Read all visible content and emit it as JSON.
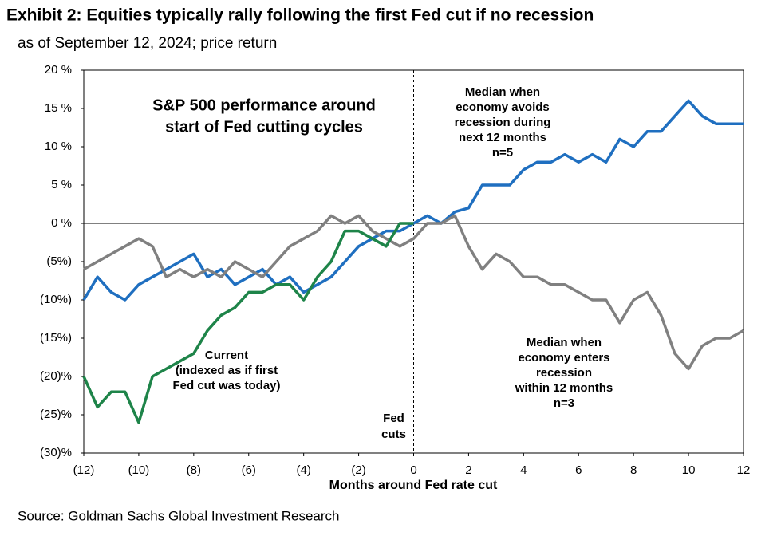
{
  "chart_data": {
    "type": "line",
    "title": "Exhibit 2: Equities typically rally following the first Fed cut if no recession",
    "subtitle": "as of September 12, 2024; price return",
    "x_label": "Months around Fed rate cut",
    "source": "Source: Goldman Sachs Global Investment Research",
    "inset_title": [
      "S&P 500 performance around",
      "start of Fed cutting cycles"
    ],
    "vline": 0,
    "vline_label": [
      "Fed",
      "cuts"
    ],
    "xlim": [
      -12,
      12
    ],
    "ylim": [
      -30,
      20
    ],
    "xticks": [
      {
        "value": -12,
        "label": "(12)"
      },
      {
        "value": -10,
        "label": "(10)"
      },
      {
        "value": -8,
        "label": "(8)"
      },
      {
        "value": -6,
        "label": "(6)"
      },
      {
        "value": -4,
        "label": "(4)"
      },
      {
        "value": -2,
        "label": "(2)"
      },
      0,
      2,
      4,
      6,
      8,
      10,
      12
    ],
    "yticks": [
      {
        "value": -30,
        "label": "(30)%"
      },
      {
        "value": -25,
        "label": "(25)%"
      },
      {
        "value": -20,
        "label": "(20)%"
      },
      {
        "value": -15,
        "label": "(15%)"
      },
      {
        "value": -10,
        "label": "(10%)"
      },
      {
        "value": -5,
        "label": "(5%)"
      },
      {
        "value": 0,
        "label": "0 %"
      },
      {
        "value": 5,
        "label": "5 %"
      },
      {
        "value": 10,
        "label": "10 %"
      },
      {
        "value": 15,
        "label": "15 %"
      },
      {
        "value": 20,
        "label": "20 %"
      }
    ],
    "x": [
      -12,
      -11.5,
      -11,
      -10.5,
      -10,
      -9.5,
      -9,
      -8.5,
      -8,
      -7.5,
      -7,
      -6.5,
      -6,
      -5.5,
      -5,
      -4.5,
      -4,
      -3.5,
      -3,
      -2.5,
      -2,
      -1.5,
      -1,
      -0.5,
      0,
      0.5,
      1,
      1.5,
      2,
      2.5,
      3,
      3.5,
      4,
      4.5,
      5,
      5.5,
      6,
      6.5,
      7,
      7.5,
      8,
      8.5,
      9,
      9.5,
      10,
      10.5,
      11,
      11.5,
      12
    ],
    "series": [
      {
        "name": [
          "Median when",
          "economy avoids",
          "recession during",
          "next 12 months",
          "n=5"
        ],
        "color": "#1f6fc0",
        "values": [
          -10,
          -7,
          -9,
          -10,
          -8,
          -7,
          -6,
          -5,
          -4,
          -7,
          -6,
          -8,
          -7,
          -6,
          -8,
          -7,
          -9,
          -8,
          -7,
          -5,
          -3,
          -2,
          -1,
          -1,
          0,
          1,
          0,
          1.5,
          2,
          5,
          5,
          5,
          7,
          8,
          8,
          9,
          8,
          9,
          8,
          11,
          10,
          12,
          12,
          14,
          16,
          14,
          13,
          13,
          13
        ]
      },
      {
        "name": [
          "Median when",
          "economy enters",
          "recession",
          "within 12 months",
          "n=3"
        ],
        "color": "#808080",
        "values": [
          -6,
          -5,
          -4,
          -3,
          -2,
          -3,
          -7,
          -6,
          -7,
          -6,
          -7,
          -5,
          -6,
          -7,
          -5,
          -3,
          -2,
          -1,
          1,
          0,
          1,
          -1,
          -2,
          -3,
          -2,
          0,
          0,
          1,
          -3,
          -6,
          -4,
          -5,
          -7,
          -7,
          -8,
          -8,
          -9,
          -10,
          -10,
          -13,
          -10,
          -9,
          -12,
          -17,
          -19,
          -16,
          -15,
          -15,
          -14
        ]
      },
      {
        "name": [
          "Current",
          "(indexed as if first",
          "Fed cut was today)"
        ],
        "color": "#1e8449",
        "values": [
          -20,
          -24,
          -22,
          -22,
          -26,
          -20,
          -19,
          -18,
          -17,
          -14,
          -12,
          -11,
          -9,
          -9,
          -8,
          -8,
          -10,
          -7,
          -5,
          -1,
          -1,
          -2,
          -3,
          0,
          0,
          null,
          null,
          null,
          null,
          null,
          null,
          null,
          null,
          null,
          null,
          null,
          null,
          null,
          null,
          null,
          null,
          null,
          null,
          null,
          null,
          null,
          null,
          null,
          null
        ]
      }
    ]
  }
}
